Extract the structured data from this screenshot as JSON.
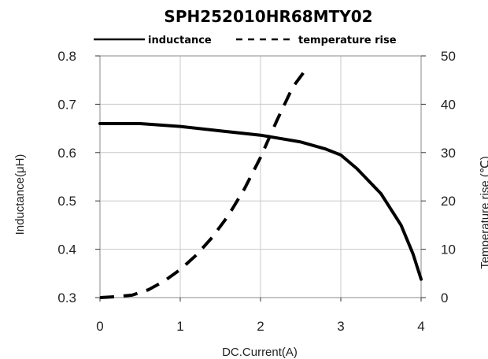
{
  "chart_data": {
    "type": "line",
    "title": "SPH252010HR68MTY02",
    "xlabel": "DC.Current(A)",
    "ylabel_left": "Inductance(μH)",
    "ylabel_right": "Temperature rise (℃)",
    "xlim": [
      0,
      4
    ],
    "ylim_left": [
      0.3,
      0.8
    ],
    "ylim_right": [
      0,
      50
    ],
    "x_ticks": [
      "0",
      "1",
      "2",
      "3",
      "4"
    ],
    "y_left_ticks": [
      "0.3",
      "0.4",
      "0.5",
      "0.6",
      "0.7",
      "0.8"
    ],
    "y_right_ticks": [
      "0",
      "10",
      "20",
      "30",
      "40",
      "50"
    ],
    "grid": true,
    "legend_position": "top",
    "series": [
      {
        "name": "inductance",
        "axis": "left",
        "style": "solid",
        "x": [
          0,
          0.25,
          0.5,
          1.0,
          1.5,
          2.0,
          2.5,
          2.8,
          3.0,
          3.2,
          3.5,
          3.75,
          3.9,
          4.0
        ],
        "y": [
          0.66,
          0.66,
          0.66,
          0.654,
          0.645,
          0.636,
          0.622,
          0.608,
          0.595,
          0.567,
          0.515,
          0.45,
          0.39,
          0.338
        ]
      },
      {
        "name": "temperature rise",
        "axis": "right",
        "style": "dashed",
        "x": [
          0,
          0.2,
          0.4,
          0.6,
          0.8,
          1.0,
          1.2,
          1.4,
          1.6,
          1.8,
          2.0,
          2.2,
          2.4,
          2.6
        ],
        "y": [
          0,
          0.2,
          0.5,
          1.6,
          3.4,
          5.8,
          8.8,
          12.5,
          17.0,
          22.5,
          29.0,
          36.5,
          43.5,
          48.0
        ]
      }
    ]
  }
}
